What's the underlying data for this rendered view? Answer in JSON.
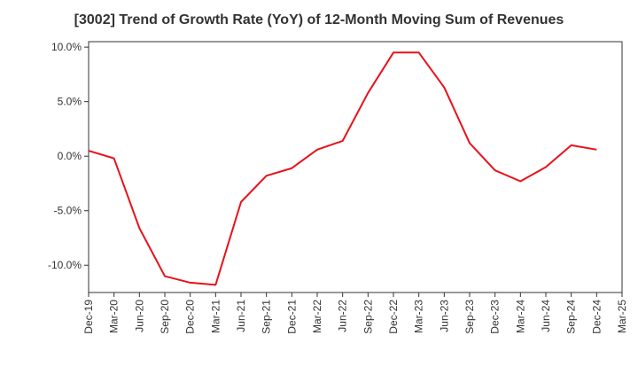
{
  "chart_data": {
    "type": "line",
    "title": "[3002]  Trend of Growth Rate (YoY) of 12-Month Moving Sum of Revenues",
    "xlabel": "",
    "ylabel": "",
    "x_tick_labels": [
      "Dec-19",
      "Mar-20",
      "Jun-20",
      "Sep-20",
      "Dec-20",
      "Mar-21",
      "Jun-21",
      "Sep-21",
      "Dec-21",
      "Mar-22",
      "Jun-22",
      "Sep-22",
      "Dec-22",
      "Mar-23",
      "Jun-23",
      "Sep-23",
      "Dec-23",
      "Mar-24",
      "Jun-24",
      "Sep-24",
      "Dec-24",
      "Mar-25"
    ],
    "y_tick_labels": [
      "10.0%",
      "5.0%",
      "0.0%",
      "-5.0%",
      "-10.0%"
    ],
    "y_tick_values": [
      10,
      5,
      0,
      -5,
      -10
    ],
    "ylim": [
      -12.5,
      10.5
    ],
    "grid": true,
    "line_color": "#e8111a",
    "series": [
      {
        "x": [
          "Dec-19",
          "Mar-20",
          "Jun-20",
          "Sep-20",
          "Dec-20",
          "Mar-21",
          "Jun-21",
          "Sep-21",
          "Dec-21",
          "Mar-22",
          "Jun-22",
          "Sep-22",
          "Dec-22",
          "Mar-23",
          "Jun-23",
          "Sep-23",
          "Dec-23",
          "Mar-24",
          "Jun-24",
          "Sep-24",
          "Dec-24"
        ],
        "values": [
          0.5,
          -0.2,
          -6.6,
          -11.0,
          -11.6,
          -11.8,
          -4.2,
          -1.8,
          -1.1,
          0.6,
          1.4,
          5.8,
          9.5,
          9.5,
          6.3,
          1.2,
          -1.3,
          -2.3,
          -1.0,
          1.0,
          0.6
        ]
      }
    ]
  }
}
